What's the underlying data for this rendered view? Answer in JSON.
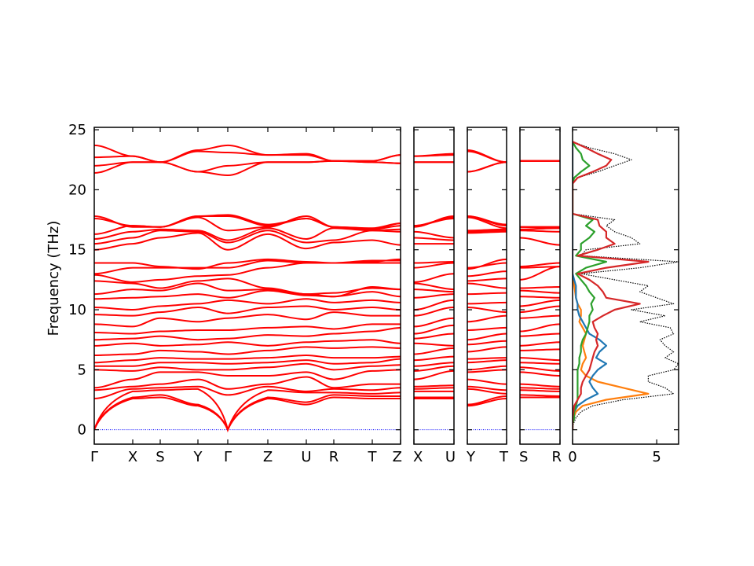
{
  "chart_data": [
    {
      "type": "line",
      "ylabel": "Frequency (THz)",
      "ylim": [
        -1.2,
        25.2
      ],
      "yticks": [
        0,
        5,
        10,
        15,
        20,
        25
      ],
      "zero_line_color": "#0000ff",
      "band_color": "#ff0000",
      "segments": [
        {
          "labels": [
            "Γ",
            "X",
            "S",
            "Y",
            "Γ",
            "Z",
            "U",
            "R",
            "T",
            "Z"
          ]
        },
        {
          "labels": [
            "X",
            "U"
          ]
        },
        {
          "labels": [
            "Y",
            "T"
          ]
        },
        {
          "labels": [
            "S",
            "R"
          ]
        }
      ],
      "bands": [
        [
          0,
          2.6,
          2.7,
          2.0,
          0,
          2.6,
          2.1,
          2.7,
          2.6,
          2.6,
          2.6,
          2.6,
          2.0,
          2.6,
          2.7,
          2.7
        ],
        [
          0,
          2.7,
          2.9,
          2.1,
          0,
          2.7,
          2.3,
          2.9,
          2.8,
          2.8,
          2.7,
          2.7,
          2.1,
          2.8,
          2.9,
          2.8
        ],
        [
          0,
          3.2,
          3.3,
          3.4,
          0,
          3.3,
          3.1,
          3.1,
          3.0,
          3.1,
          3.2,
          3.2,
          3.4,
          3.0,
          3.3,
          3.2
        ],
        [
          2.6,
          3.4,
          3.5,
          3.6,
          2.9,
          3.6,
          3.2,
          3.4,
          3.3,
          3.5,
          3.4,
          3.5,
          3.6,
          3.3,
          3.5,
          3.4
        ],
        [
          3.3,
          3.6,
          3.8,
          4.2,
          3.4,
          3.8,
          4.4,
          3.5,
          3.8,
          3.8,
          3.6,
          3.7,
          4.2,
          3.8,
          3.8,
          3.6
        ],
        [
          3.5,
          4.2,
          4.8,
          4.8,
          4.5,
          4.5,
          4.8,
          4.2,
          4.9,
          5.0,
          4.2,
          4.9,
          4.8,
          5.0,
          4.8,
          4.5
        ],
        [
          5.0,
          4.9,
          5.2,
          5.0,
          5.0,
          5.2,
          5.5,
          5.0,
          5.3,
          5.4,
          4.9,
          5.3,
          5.0,
          5.3,
          5.2,
          4.9
        ],
        [
          5.3,
          5.3,
          5.6,
          5.6,
          5.5,
          5.6,
          5.8,
          5.5,
          5.6,
          5.9,
          5.3,
          5.6,
          5.6,
          5.8,
          5.6,
          5.5
        ],
        [
          5.6,
          5.8,
          6.0,
          5.9,
          5.9,
          6.0,
          6.2,
          6.0,
          6.0,
          6.1,
          5.8,
          6.1,
          5.9,
          6.0,
          6.0,
          5.8
        ],
        [
          6.2,
          6.3,
          6.6,
          6.5,
          6.3,
          6.6,
          6.9,
          6.8,
          6.9,
          6.8,
          6.3,
          6.8,
          6.5,
          6.9,
          6.6,
          6.7
        ],
        [
          7.0,
          7.2,
          7.0,
          7.1,
          7.3,
          7.0,
          7.3,
          7.4,
          7.5,
          7.2,
          7.2,
          7.0,
          7.1,
          7.4,
          7.0,
          7.3
        ],
        [
          7.5,
          7.6,
          7.8,
          7.5,
          7.6,
          7.9,
          7.8,
          8.0,
          8.2,
          8.5,
          7.6,
          8.0,
          7.5,
          8.0,
          7.8,
          8.0
        ],
        [
          8.1,
          8.0,
          8.2,
          8.3,
          8.3,
          8.5,
          8.6,
          8.4,
          8.8,
          8.8,
          8.0,
          8.7,
          8.3,
          8.5,
          8.2,
          8.8
        ],
        [
          8.8,
          8.6,
          9.3,
          9.0,
          9.3,
          9.6,
          9.2,
          9.8,
          9.5,
          9.5,
          8.6,
          9.3,
          9.0,
          9.5,
          9.3,
          9.5
        ],
        [
          9.6,
          9.5,
          9.8,
          10.2,
          9.7,
          10.2,
          10.3,
          10.0,
          10.2,
          10.0,
          9.5,
          10.2,
          10.2,
          9.8,
          9.8,
          10.3
        ],
        [
          10.2,
          10.0,
          10.3,
          10.5,
          10.8,
          10.5,
          10.9,
          10.6,
          10.8,
          10.6,
          10.0,
          10.8,
          10.5,
          10.6,
          10.3,
          10.8
        ],
        [
          10.9,
          11.0,
          11.1,
          11.3,
          11.0,
          11.6,
          11.2,
          11.1,
          11.5,
          11.1,
          11.0,
          11.3,
          11.3,
          11.4,
          11.1,
          11.0
        ],
        [
          11.3,
          11.7,
          11.6,
          12.2,
          11.6,
          11.7,
          11.3,
          11.4,
          11.8,
          11.7,
          11.7,
          11.5,
          12.2,
          11.8,
          11.6,
          11.4
        ],
        [
          12.4,
          12.2,
          11.8,
          12.4,
          12.6,
          11.8,
          11.3,
          11.1,
          11.9,
          11.7,
          12.2,
          11.7,
          12.4,
          12.6,
          11.8,
          11.9
        ],
        [
          12.9,
          12.3,
          12.5,
          12.8,
          12.9,
          13.5,
          13.9,
          13.9,
          13.9,
          13.9,
          12.3,
          13.0,
          12.8,
          13.2,
          12.5,
          13.6
        ],
        [
          13.0,
          13.5,
          13.5,
          13.5,
          13.5,
          14.1,
          13.9,
          13.9,
          14.1,
          14.1,
          13.5,
          13.9,
          13.5,
          13.9,
          13.5,
          13.6
        ],
        [
          13.9,
          13.9,
          13.6,
          13.4,
          13.9,
          14.2,
          14.0,
          13.9,
          14.0,
          14.2,
          13.9,
          14.0,
          13.4,
          14.2,
          13.6,
          13.9
        ],
        [
          15.0,
          15.5,
          16.0,
          16.4,
          15.0,
          16.3,
          15.1,
          15.6,
          15.8,
          15.4,
          15.5,
          15.5,
          16.4,
          16.5,
          16.0,
          15.4
        ],
        [
          15.5,
          16.0,
          16.6,
          16.5,
          15.6,
          16.6,
          15.6,
          15.8,
          16.6,
          16.5,
          16.0,
          15.8,
          16.5,
          16.6,
          16.6,
          16.5
        ],
        [
          15.9,
          16.5,
          16.7,
          16.6,
          15.8,
          16.8,
          15.9,
          16.8,
          16.6,
          16.7,
          16.5,
          16.0,
          16.6,
          16.7,
          16.7,
          16.8
        ],
        [
          16.3,
          17.0,
          16.9,
          17.7,
          16.6,
          16.9,
          17.8,
          16.9,
          16.7,
          17.0,
          17.0,
          17.6,
          17.7,
          16.8,
          16.9,
          16.8
        ],
        [
          17.6,
          17.0,
          16.9,
          17.8,
          17.8,
          17.0,
          17.6,
          16.9,
          16.8,
          17.2,
          17.0,
          17.7,
          17.8,
          17.0,
          16.9,
          16.9
        ],
        [
          17.8,
          16.9,
          16.9,
          17.8,
          17.9,
          17.1,
          17.6,
          16.9,
          16.7,
          17.2,
          16.9,
          17.8,
          17.8,
          17.1,
          16.9,
          16.9
        ],
        [
          21.4,
          22.3,
          22.3,
          21.5,
          21.2,
          22.3,
          22.3,
          22.4,
          22.3,
          22.2,
          22.3,
          22.3,
          21.5,
          22.3,
          22.4,
          22.4
        ],
        [
          22.0,
          22.3,
          22.3,
          21.5,
          22.0,
          22.3,
          22.3,
          22.4,
          22.3,
          22.2,
          22.3,
          22.3,
          21.5,
          22.3,
          22.4,
          22.4
        ],
        [
          22.7,
          22.8,
          22.3,
          23.2,
          23.1,
          22.9,
          22.9,
          22.4,
          22.4,
          22.9,
          22.8,
          22.9,
          23.2,
          22.3,
          22.4,
          22.4
        ],
        [
          23.7,
          22.8,
          22.3,
          23.3,
          23.7,
          22.9,
          23.0,
          22.4,
          22.4,
          22.9,
          22.8,
          23.0,
          23.3,
          22.3,
          22.4,
          22.4
        ]
      ]
    },
    {
      "type": "line",
      "xlim": [
        0,
        6.3
      ],
      "xticks": [
        0,
        5
      ],
      "ylim": [
        -1.2,
        25.2
      ],
      "frequency_start": 0,
      "frequency_step": 0.5,
      "series": [
        {
          "color": "#000000",
          "style": "dotted",
          "values": [
            0,
            0.05,
            0.2,
            0.5,
            1.2,
            3,
            6,
            5.5,
            4.5,
            4.5,
            6,
            6.3,
            5.5,
            6,
            5.5,
            5.2,
            6,
            5.8,
            4,
            5.5,
            3.5,
            6,
            5,
            4,
            4.5,
            2.5,
            0.5,
            4,
            6.3,
            0.5,
            0.8,
            4,
            3.5,
            2.5,
            2,
            2.5,
            0,
            0,
            0,
            0,
            0,
            0,
            0.3,
            1.5,
            2.5,
            3.5,
            2.5,
            1,
            0
          ]
        },
        {
          "color": "#ff7f0e",
          "style": "solid",
          "values": [
            0,
            0,
            0.05,
            0.2,
            0.6,
            2,
            4.5,
            3,
            1.5,
            0.8,
            0.5,
            0.6,
            0.8,
            0.7,
            0.6,
            0.7,
            0.8,
            0.6,
            0.4,
            0.5,
            0.5,
            0.3,
            0.2,
            0.15,
            0.1,
            0.05,
            0,
            0,
            0,
            0,
            0,
            0,
            0,
            0,
            0,
            0,
            0,
            0,
            0,
            0,
            0,
            0,
            0,
            0,
            0,
            0,
            0,
            0,
            0
          ]
        },
        {
          "color": "#1f77b4",
          "style": "solid",
          "values": [
            0,
            0,
            0.02,
            0.1,
            0.3,
            0.8,
            1.5,
            1.2,
            1,
            1.2,
            1.5,
            2,
            1.4,
            1.6,
            2,
            1.6,
            1,
            0.8,
            0.6,
            0.4,
            0.3,
            0.3,
            0.2,
            0.2,
            0.2,
            0.1,
            0,
            0,
            0,
            0,
            0,
            0,
            0,
            0,
            0,
            0,
            0,
            0,
            0,
            0,
            0,
            0,
            0,
            0,
            0,
            0,
            0,
            0,
            0
          ]
        },
        {
          "color": "#2ca02c",
          "style": "solid",
          "values": [
            0,
            0,
            0.1,
            0.1,
            0.2,
            0.3,
            0.3,
            0.3,
            0.3,
            0.3,
            0.3,
            0.4,
            0.4,
            0.5,
            0.5,
            0.6,
            0.8,
            0.9,
            1,
            1,
            1.2,
            1.1,
            1.3,
            1,
            0.8,
            0.5,
            0.2,
            0.8,
            2,
            0.2,
            0.5,
            0.5,
            1,
            1.3,
            0.8,
            1.2,
            0,
            0,
            0,
            0,
            0,
            0,
            0.1,
            0.5,
            1,
            0.6,
            0.5,
            0.2,
            0
          ]
        },
        {
          "color": "#d62728",
          "style": "solid",
          "values": [
            0,
            0,
            0,
            0.05,
            0.1,
            0.3,
            0.5,
            0.5,
            0.6,
            0.8,
            1,
            1.1,
            1.2,
            1.3,
            1.5,
            1.4,
            1.5,
            1.3,
            1.2,
            1.8,
            2.5,
            4,
            2,
            1.8,
            1.5,
            1,
            0.3,
            2,
            4.5,
            0.3,
            1.5,
            2.5,
            2,
            2,
            1.6,
            1.5,
            0,
            0,
            0,
            0,
            0,
            0,
            0.3,
            1.2,
            2,
            2.3,
            1.5,
            0.8,
            0
          ]
        }
      ]
    }
  ]
}
